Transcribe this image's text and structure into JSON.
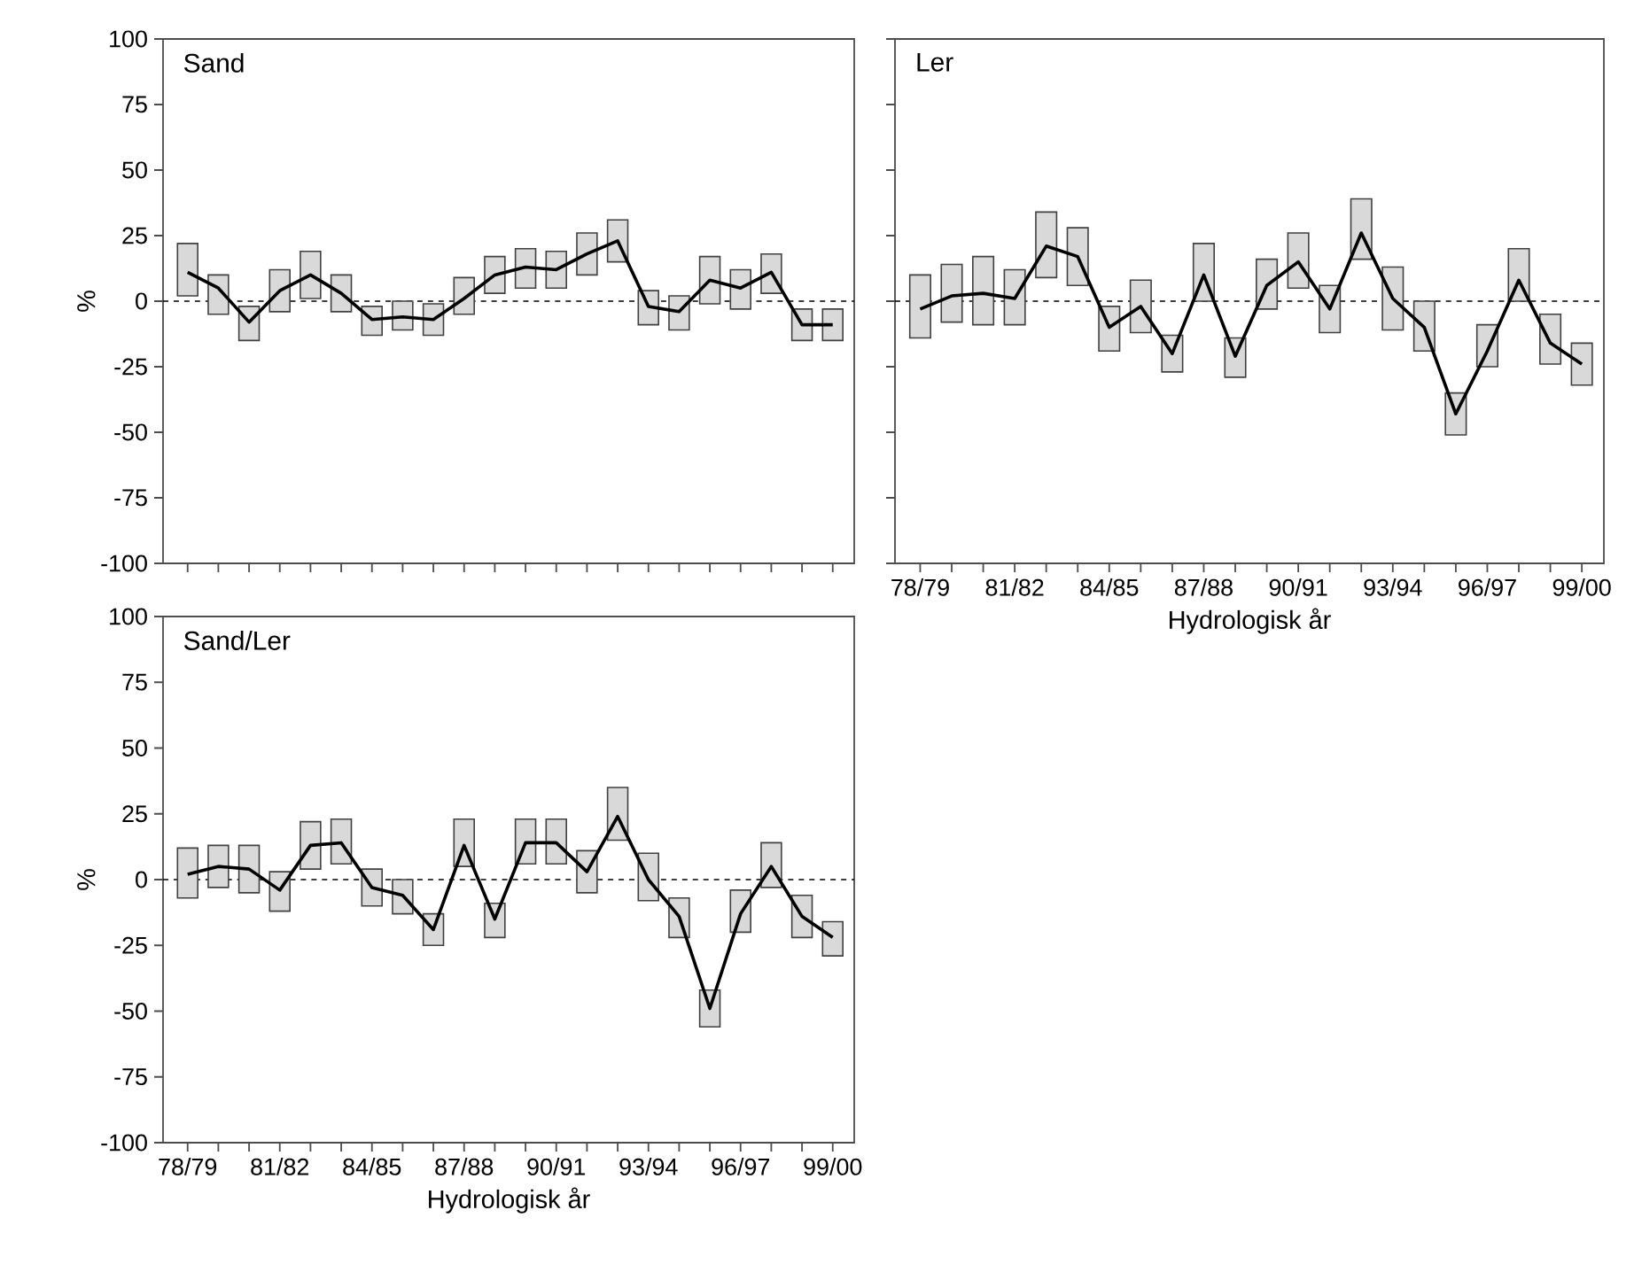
{
  "chart_data": [
    {
      "type": "bar",
      "title": "Sand",
      "ylabel": "%",
      "categories": [
        null,
        null,
        null,
        null,
        null,
        null,
        null,
        null,
        null,
        null,
        null,
        null,
        null,
        null,
        null,
        null,
        null,
        null,
        null,
        null,
        null,
        null
      ],
      "ylim": [
        -100,
        100
      ],
      "yticks": [
        -100,
        -75,
        -50,
        -25,
        0,
        25,
        50,
        75,
        100
      ],
      "ref_lines": [
        {
          "axis": "y",
          "value": 0,
          "line_style": "dashed",
          "color": "#000000"
        }
      ],
      "series": [
        {
          "color": "#d9d9d9",
          "base": [
            2,
            -5,
            -15,
            -4,
            1,
            -4,
            -13,
            -11,
            -13,
            -5,
            3,
            5,
            5,
            10,
            15,
            -9,
            -11,
            -1,
            -3,
            3,
            -15,
            -15
          ],
          "values": [
            20,
            15,
            13,
            16,
            18,
            14,
            11,
            11,
            12,
            14,
            14,
            15,
            14,
            16,
            16,
            13,
            13,
            18,
            15,
            15,
            12,
            12
          ]
        },
        {
          "type": "line",
          "color": "#000000",
          "values": [
            11,
            5,
            -8,
            4,
            10,
            3,
            -7,
            -6,
            -7,
            1,
            10,
            13,
            12,
            18,
            23,
            -2,
            -4,
            8,
            5,
            11,
            -9,
            -9
          ]
        }
      ]
    },
    {
      "type": "bar",
      "title": "Ler",
      "xlabel": "Hydrologisk år",
      "tick_labels": "x",
      "categories": [
        "78/79",
        null,
        null,
        "81/82",
        null,
        null,
        "84/85",
        null,
        null,
        "87/88",
        null,
        null,
        "90/91",
        null,
        null,
        "93/94",
        null,
        null,
        "96/97",
        null,
        null,
        "99/00"
      ],
      "ylim": [
        -100,
        100
      ],
      "yticks": [
        -100,
        -75,
        -50,
        -25,
        0,
        25,
        50,
        75,
        100
      ],
      "ref_lines": [
        {
          "axis": "y",
          "value": 0,
          "line_style": "dashed",
          "color": "#000000"
        }
      ],
      "series": [
        {
          "color": "#d9d9d9",
          "base": [
            -14,
            -8,
            -9,
            -9,
            9,
            6,
            -19,
            -12,
            -27,
            0,
            -29,
            -3,
            5,
            -12,
            16,
            -11,
            -19,
            -51,
            -25,
            0,
            -24,
            -32
          ],
          "values": [
            24,
            22,
            26,
            21,
            25,
            22,
            17,
            20,
            14,
            22,
            15,
            19,
            21,
            18,
            23,
            24,
            19,
            16,
            16,
            20,
            19,
            16
          ]
        },
        {
          "type": "line",
          "color": "#000000",
          "values": [
            -3,
            2,
            3,
            1,
            21,
            17,
            -10,
            -2,
            -20,
            10,
            -21,
            6,
            15,
            -3,
            26,
            1,
            -10,
            -43,
            -19,
            8,
            -16,
            -24
          ]
        }
      ]
    },
    {
      "type": "bar",
      "title": "Sand/Ler",
      "xlabel": "Hydrologisk år",
      "ylabel": "%",
      "categories": [
        "78/79",
        null,
        null,
        "81/82",
        null,
        null,
        "84/85",
        null,
        null,
        "87/88",
        null,
        null,
        "90/91",
        null,
        null,
        "93/94",
        null,
        null,
        "96/97",
        null,
        null,
        "99/00"
      ],
      "ylim": [
        -100,
        100
      ],
      "yticks": [
        -100,
        -75,
        -50,
        -25,
        0,
        25,
        50,
        75,
        100
      ],
      "ref_lines": [
        {
          "axis": "y",
          "value": 0,
          "line_style": "dashed",
          "color": "#000000"
        }
      ],
      "series": [
        {
          "color": "#d9d9d9",
          "base": [
            -7,
            -3,
            -5,
            -12,
            4,
            6,
            -10,
            -13,
            -25,
            5,
            -22,
            6,
            6,
            -5,
            15,
            -8,
            -22,
            -56,
            -20,
            -3,
            -22,
            -29
          ],
          "values": [
            19,
            16,
            18,
            15,
            18,
            17,
            14,
            13,
            12,
            18,
            13,
            17,
            17,
            16,
            20,
            18,
            15,
            14,
            16,
            17,
            16,
            13
          ]
        },
        {
          "type": "line",
          "color": "#000000",
          "values": [
            2,
            5,
            4,
            -4,
            13,
            14,
            -3,
            -6,
            -19,
            13,
            -15,
            14,
            14,
            3,
            24,
            0,
            -14,
            -49,
            -13,
            5,
            -14,
            -22
          ]
        }
      ]
    }
  ]
}
